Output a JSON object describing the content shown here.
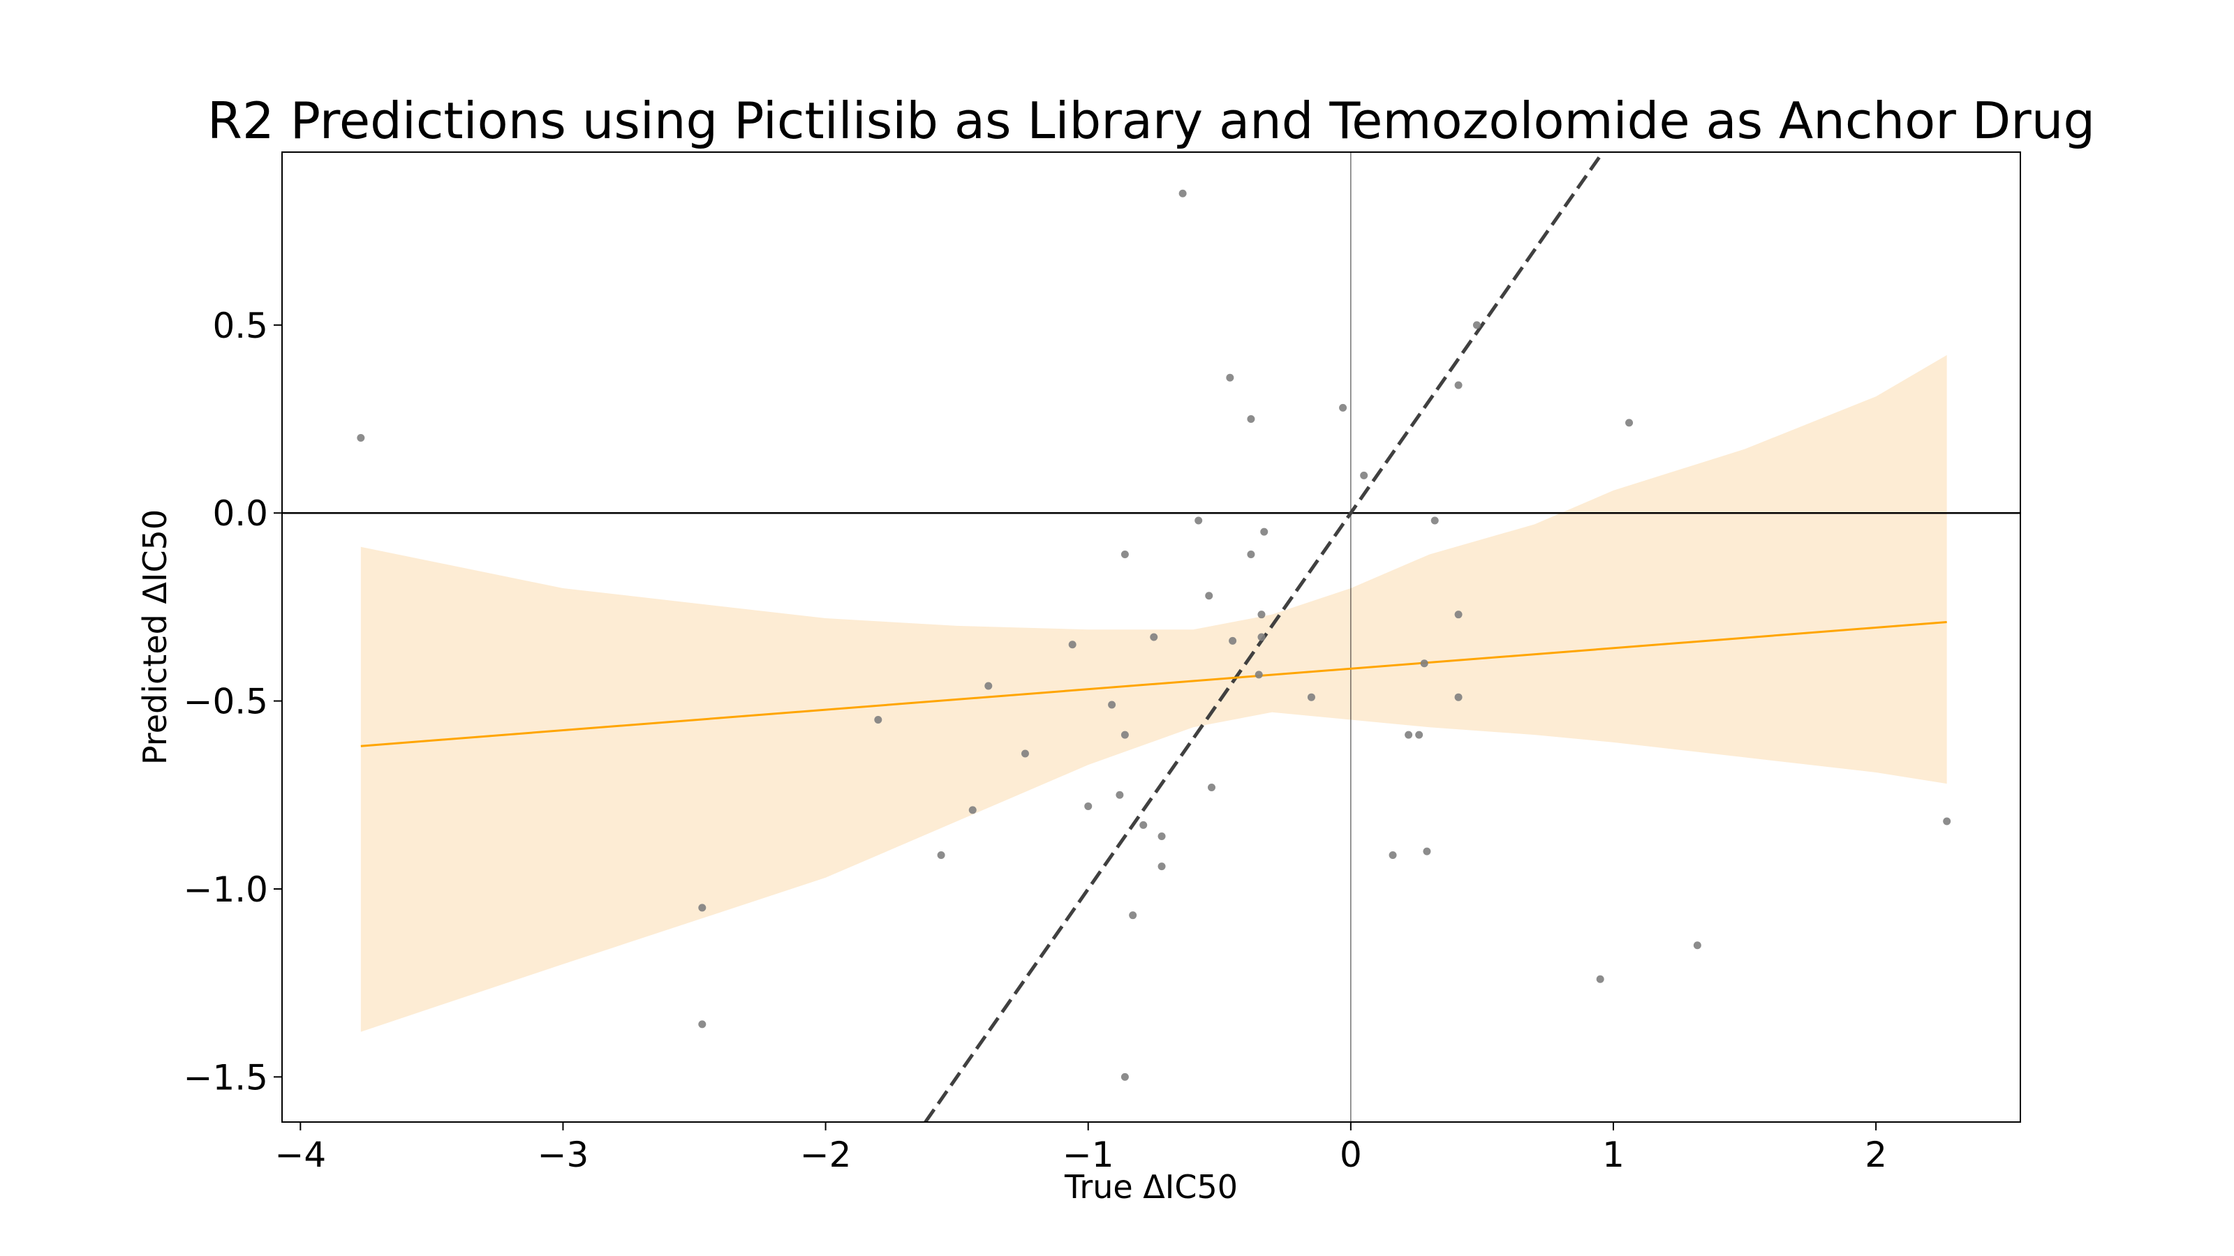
{
  "chart_data": {
    "type": "scatter",
    "title": "R2 Predictions using Pictilisib as Library and Temozolomide as Anchor Drug",
    "xlabel": "True ΔIC50",
    "ylabel": "Predicted ΔIC50",
    "xlim": [
      -4.07,
      2.55
    ],
    "ylim": [
      -1.62,
      0.96
    ],
    "xticks": [
      -4,
      -3,
      -2,
      -1,
      0,
      1,
      2
    ],
    "xtick_labels": [
      "−4",
      "−3",
      "−2",
      "−1",
      "0",
      "1",
      "2"
    ],
    "yticks": [
      0.5,
      0.0,
      -0.5,
      -1.0,
      -1.5
    ],
    "ytick_labels": [
      "0.5",
      "0.0",
      "−0.5",
      "−1.0",
      "−1.5"
    ],
    "grid": false,
    "colors": {
      "points": "#808080",
      "regression": "#ffa500",
      "band": "#fdecd4",
      "identity": "#404040",
      "zero_lines": "#000000"
    },
    "points": [
      {
        "x": -3.77,
        "y": 0.2
      },
      {
        "x": -2.47,
        "y": -1.05
      },
      {
        "x": -2.47,
        "y": -1.36
      },
      {
        "x": -1.8,
        "y": -0.55
      },
      {
        "x": -1.56,
        "y": -0.91
      },
      {
        "x": -1.44,
        "y": -0.79
      },
      {
        "x": -1.38,
        "y": -0.46
      },
      {
        "x": -1.24,
        "y": -0.64
      },
      {
        "x": -1.06,
        "y": -0.35
      },
      {
        "x": -1.0,
        "y": -0.78
      },
      {
        "x": -0.91,
        "y": -0.51
      },
      {
        "x": -0.88,
        "y": -0.75
      },
      {
        "x": -0.86,
        "y": -0.59
      },
      {
        "x": -0.86,
        "y": -0.11
      },
      {
        "x": -0.86,
        "y": -1.5
      },
      {
        "x": -0.83,
        "y": -1.07
      },
      {
        "x": -0.79,
        "y": -0.83
      },
      {
        "x": -0.75,
        "y": -0.33
      },
      {
        "x": -0.72,
        "y": -0.86
      },
      {
        "x": -0.72,
        "y": -0.94
      },
      {
        "x": -0.64,
        "y": 0.85
      },
      {
        "x": -0.58,
        "y": -0.02
      },
      {
        "x": -0.54,
        "y": -0.22
      },
      {
        "x": -0.53,
        "y": -0.73
      },
      {
        "x": -0.46,
        "y": 0.36
      },
      {
        "x": -0.45,
        "y": -0.34
      },
      {
        "x": -0.38,
        "y": 0.25
      },
      {
        "x": -0.38,
        "y": -0.11
      },
      {
        "x": -0.35,
        "y": -0.43
      },
      {
        "x": -0.34,
        "y": -0.27
      },
      {
        "x": -0.33,
        "y": -0.05
      },
      {
        "x": -0.34,
        "y": -0.33
      },
      {
        "x": -0.15,
        "y": -0.49
      },
      {
        "x": -0.03,
        "y": 0.28
      },
      {
        "x": 0.05,
        "y": 0.1
      },
      {
        "x": 0.16,
        "y": -0.91
      },
      {
        "x": 0.22,
        "y": -0.59
      },
      {
        "x": 0.26,
        "y": -0.59
      },
      {
        "x": 0.28,
        "y": -0.4
      },
      {
        "x": 0.29,
        "y": -0.9
      },
      {
        "x": 0.32,
        "y": -0.02
      },
      {
        "x": 0.41,
        "y": 0.34
      },
      {
        "x": 0.41,
        "y": -0.27
      },
      {
        "x": 0.41,
        "y": -0.49
      },
      {
        "x": 0.48,
        "y": 0.5
      },
      {
        "x": 0.95,
        "y": -1.24
      },
      {
        "x": 1.06,
        "y": 0.24
      },
      {
        "x": 1.32,
        "y": -1.15
      },
      {
        "x": 2.27,
        "y": -0.82
      }
    ],
    "regression_line": {
      "x": [
        -3.77,
        2.27
      ],
      "y": [
        -0.62,
        -0.29
      ]
    },
    "confidence_band": {
      "x": [
        -3.77,
        -3.0,
        -2.0,
        -1.5,
        -1.0,
        -0.6,
        -0.3,
        0.0,
        0.3,
        0.7,
        1.0,
        1.5,
        2.0,
        2.27
      ],
      "lower": [
        -1.38,
        -1.2,
        -0.97,
        -0.82,
        -0.67,
        -0.57,
        -0.53,
        -0.55,
        -0.57,
        -0.59,
        -0.61,
        -0.65,
        -0.69,
        -0.72
      ],
      "upper": [
        -0.09,
        -0.2,
        -0.28,
        -0.3,
        -0.31,
        -0.31,
        -0.27,
        -0.2,
        -0.11,
        -0.03,
        0.06,
        0.17,
        0.31,
        0.42
      ]
    },
    "identity_line": {
      "x": [
        -1.62,
        0.97
      ],
      "y": [
        -1.62,
        0.97
      ]
    },
    "reference_lines": {
      "x": 0,
      "y": 0
    }
  }
}
